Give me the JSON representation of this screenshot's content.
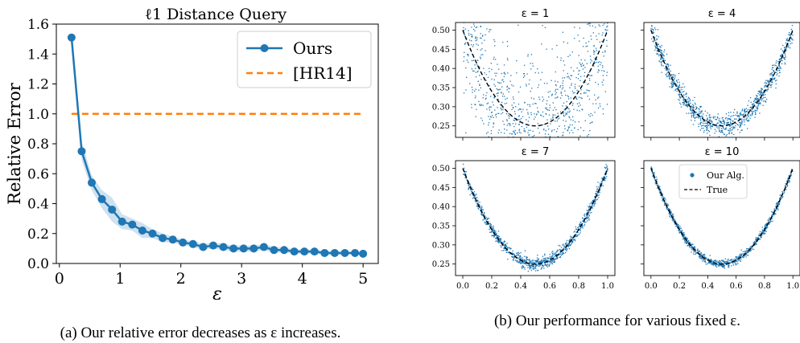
{
  "chart_data": [
    {
      "type": "line",
      "title": "ℓ1 Distance Query",
      "xlabel": "ε",
      "ylabel": "Relative Error",
      "xlim": [
        -0.05,
        5.25
      ],
      "ylim": [
        0,
        1.6
      ],
      "xticks": [
        "0",
        "1",
        "2",
        "3",
        "4",
        "5"
      ],
      "yticks": [
        "0.0",
        "0.2",
        "0.4",
        "0.6",
        "0.8",
        "1.0",
        "1.2",
        "1.4",
        "1.6"
      ],
      "legend_position": "top-right",
      "grid": false,
      "series": [
        {
          "name": "Ours",
          "color": "#1f77b4",
          "style": "solid-with-markers",
          "x": [
            0.2,
            0.367,
            0.533,
            0.7,
            0.867,
            1.033,
            1.2,
            1.367,
            1.533,
            1.7,
            1.867,
            2.033,
            2.2,
            2.367,
            2.533,
            2.7,
            2.867,
            3.033,
            3.2,
            3.367,
            3.533,
            3.7,
            3.867,
            4.033,
            4.2,
            4.367,
            4.533,
            4.7,
            4.867,
            5.0
          ],
          "y": [
            1.51,
            0.75,
            0.54,
            0.43,
            0.36,
            0.28,
            0.26,
            0.22,
            0.2,
            0.17,
            0.16,
            0.14,
            0.13,
            0.11,
            0.12,
            0.11,
            0.1,
            0.1,
            0.1,
            0.11,
            0.09,
            0.09,
            0.08,
            0.08,
            0.08,
            0.07,
            0.07,
            0.07,
            0.07,
            0.065
          ],
          "band_halfwidth": [
            0.03,
            0.06,
            0.05,
            0.06,
            0.08,
            0.05,
            0.04,
            0.05,
            0.03,
            0.03,
            0.02,
            0.02,
            0.02,
            0.02,
            0.02,
            0.02,
            0.02,
            0.02,
            0.02,
            0.02,
            0.02,
            0.015,
            0.015,
            0.015,
            0.015,
            0.015,
            0.015,
            0.01,
            0.01,
            0.01
          ]
        },
        {
          "name": "[HR14]",
          "color": "#ff7f0e",
          "style": "dashed",
          "x": [
            0.2,
            5.0
          ],
          "y": [
            1.0,
            1.0
          ]
        }
      ]
    },
    {
      "type": "scatter",
      "title": "ε = 1",
      "epsilon": 1,
      "noise": 0.09,
      "xlim": [
        -0.05,
        1.05
      ],
      "ylim": [
        0.22,
        0.52
      ],
      "yticks": [
        "0.25",
        "0.30",
        "0.35",
        "0.40",
        "0.45",
        "0.50"
      ],
      "xticks": [],
      "series": [
        {
          "name": "",
          "color": "#1f77b4",
          "style": "dots",
          "n_points": 1000
        },
        {
          "name": "",
          "color": "#000000",
          "style": "dashed",
          "curve": "(x-0.5)^2+0.25"
        }
      ]
    },
    {
      "type": "scatter",
      "title": "ε = 4",
      "epsilon": 4,
      "noise": 0.014,
      "xlim": [
        -0.05,
        1.05
      ],
      "ylim": [
        0.22,
        0.52
      ],
      "yticks": [],
      "xticks": [],
      "series": [
        {
          "name": "",
          "color": "#1f77b4",
          "style": "dots",
          "n_points": 1000
        },
        {
          "name": "",
          "color": "#000000",
          "style": "dashed",
          "curve": "(x-0.5)^2+0.25"
        }
      ]
    },
    {
      "type": "scatter",
      "title": "ε = 7",
      "epsilon": 7,
      "noise": 0.008,
      "xlim": [
        -0.05,
        1.05
      ],
      "ylim": [
        0.22,
        0.52
      ],
      "yticks": [
        "0.25",
        "0.30",
        "0.35",
        "0.40",
        "0.45",
        "0.50"
      ],
      "xticks": [
        "0.0",
        "0.2",
        "0.4",
        "0.6",
        "0.8",
        "1.0"
      ],
      "series": [
        {
          "name": "",
          "color": "#1f77b4",
          "style": "dots",
          "n_points": 1000
        },
        {
          "name": "",
          "color": "#000000",
          "style": "dashed",
          "curve": "(x-0.5)^2+0.25"
        }
      ]
    },
    {
      "type": "scatter",
      "title": "ε = 10",
      "epsilon": 10,
      "noise": 0.005,
      "xlim": [
        -0.05,
        1.05
      ],
      "ylim": [
        0.22,
        0.52
      ],
      "yticks": [],
      "xticks": [
        "0.0",
        "0.2",
        "0.4",
        "0.6",
        "0.8",
        "1.0"
      ],
      "legend_position": "top-right",
      "series": [
        {
          "name": "Our Alg.",
          "color": "#1f77b4",
          "style": "dots",
          "n_points": 1000
        },
        {
          "name": "True",
          "color": "#000000",
          "style": "dashed",
          "curve": "(x-0.5)^2+0.25"
        }
      ]
    }
  ],
  "captions": {
    "a": "(a) Our relative error decreases as ε increases.",
    "b": "(b) Our performance for various fixed ε."
  }
}
